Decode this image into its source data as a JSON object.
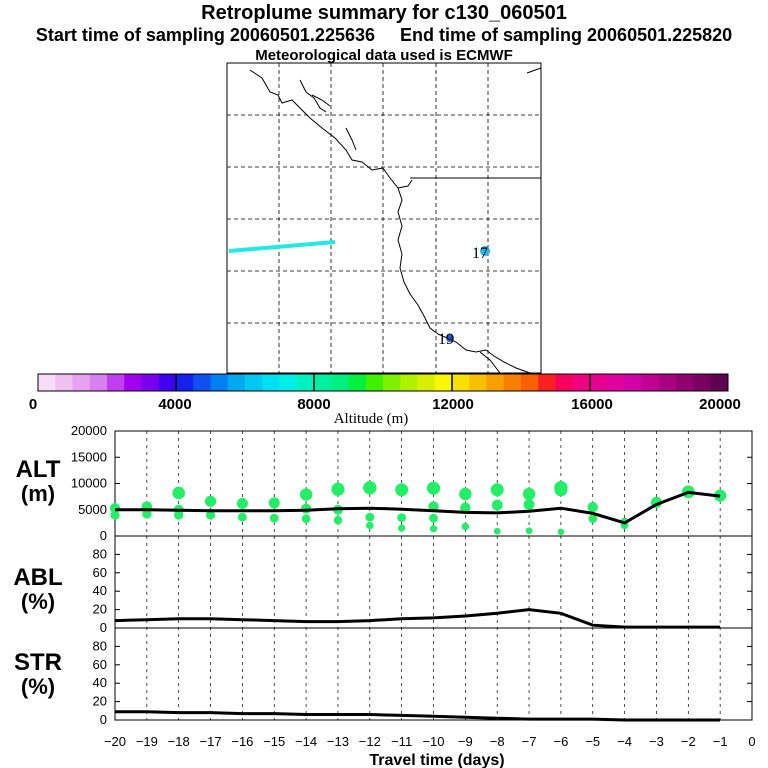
{
  "header": {
    "title": "Retroplume summary for c130_060501",
    "start_label": "Start time of sampling 20060501.225636",
    "end_label": "End time of sampling 20060501.225820",
    "met_label": "Meteorological data used is ECMWF"
  },
  "map": {
    "markers": [
      {
        "label": "17",
        "color": "#22b8e8"
      },
      {
        "label": "19",
        "color": "#1f5fd6"
      }
    ],
    "plume_color": "#22e8e8"
  },
  "colorbar": {
    "title": "Altitude (m)",
    "ticks": [
      "0",
      "4000",
      "8000",
      "12000",
      "16000",
      "20000"
    ],
    "colors": [
      "#f8dcf8",
      "#f0c0f0",
      "#e8a0f0",
      "#d880f0",
      "#c040f0",
      "#a000f0",
      "#7800f0",
      "#4000f0",
      "#1820f0",
      "#1050f0",
      "#0080f0",
      "#00a8f0",
      "#00c8f0",
      "#00e0f0",
      "#00f0e8",
      "#00f0c0",
      "#00f0a0",
      "#00f080",
      "#00f040",
      "#40f000",
      "#80f000",
      "#b0f000",
      "#d8f000",
      "#f8f800",
      "#f8e000",
      "#f8c000",
      "#f8a000",
      "#f88000",
      "#f86000",
      "#f82020",
      "#f80060",
      "#f00080",
      "#e80090",
      "#e000a0",
      "#d000a8",
      "#c00090",
      "#a80080",
      "#900070",
      "#780060",
      "#600050"
    ]
  },
  "xaxis": {
    "label": "Travel time (days)",
    "ticks": [
      "−20",
      "−19",
      "−18",
      "−17",
      "−16",
      "−15",
      "−14",
      "−13",
      "−12",
      "−11",
      "−10",
      "−9",
      "−8",
      "−7",
      "−6",
      "−5",
      "−4",
      "−3",
      "−2",
      "−1",
      "0"
    ]
  },
  "chart_data": [
    {
      "type": "line",
      "title": "ALT",
      "ylabel": "ALT (m)",
      "ylabel_line1": "ALT",
      "ylabel_line2": "(m)",
      "ylim": [
        0,
        20000
      ],
      "yticks": [
        "0",
        "5000",
        "10000",
        "15000",
        "20000"
      ],
      "x": [
        -20,
        -19,
        -18,
        -17,
        -16,
        -15,
        -14,
        -13,
        -12,
        -11,
        -10,
        -9,
        -8,
        -7,
        -6,
        -5,
        -4,
        -3,
        -2,
        -1
      ],
      "values": [
        5000,
        5000,
        4900,
        4800,
        4800,
        4800,
        4900,
        5200,
        5300,
        5100,
        4800,
        4500,
        4400,
        4700,
        5300,
        4300,
        2500,
        6000,
        8300,
        7600
      ],
      "scatter": [
        {
          "x": -20,
          "y": 5300
        },
        {
          "x": -20,
          "y": 4000
        },
        {
          "x": -19,
          "y": 5600
        },
        {
          "x": -19,
          "y": 4200
        },
        {
          "x": -18,
          "y": 8200
        },
        {
          "x": -18,
          "y": 5000
        },
        {
          "x": -18,
          "y": 4000
        },
        {
          "x": -17,
          "y": 6600
        },
        {
          "x": -17,
          "y": 4000
        },
        {
          "x": -16,
          "y": 6200
        },
        {
          "x": -16,
          "y": 3600
        },
        {
          "x": -15,
          "y": 6300
        },
        {
          "x": -15,
          "y": 3400
        },
        {
          "x": -14,
          "y": 7900
        },
        {
          "x": -14,
          "y": 5200
        },
        {
          "x": -14,
          "y": 3300
        },
        {
          "x": -13,
          "y": 8900
        },
        {
          "x": -13,
          "y": 5000
        },
        {
          "x": -13,
          "y": 3000
        },
        {
          "x": -12,
          "y": 9200
        },
        {
          "x": -12,
          "y": 3600
        },
        {
          "x": -12,
          "y": 2000
        },
        {
          "x": -11,
          "y": 8800
        },
        {
          "x": -11,
          "y": 3500
        },
        {
          "x": -11,
          "y": 1500
        },
        {
          "x": -10,
          "y": 9100
        },
        {
          "x": -10,
          "y": 5600
        },
        {
          "x": -10,
          "y": 3400
        },
        {
          "x": -10,
          "y": 1400
        },
        {
          "x": -9,
          "y": 8000
        },
        {
          "x": -9,
          "y": 5400
        },
        {
          "x": -9,
          "y": 1800
        },
        {
          "x": -8,
          "y": 8800
        },
        {
          "x": -8,
          "y": 5900
        },
        {
          "x": -8,
          "y": 900
        },
        {
          "x": -7,
          "y": 8000
        },
        {
          "x": -7,
          "y": 6000
        },
        {
          "x": -7,
          "y": 1000
        },
        {
          "x": -6,
          "y": 9200
        },
        {
          "x": -6,
          "y": 8800
        },
        {
          "x": -6,
          "y": 800
        },
        {
          "x": -5,
          "y": 5500
        },
        {
          "x": -5,
          "y": 3300
        },
        {
          "x": -4,
          "y": 2700
        },
        {
          "x": -4,
          "y": 2000
        },
        {
          "x": -3,
          "y": 6400
        },
        {
          "x": -2,
          "y": 8400
        },
        {
          "x": -1,
          "y": 7700
        }
      ]
    },
    {
      "type": "line",
      "title": "ABL",
      "ylabel": "ABL (%)",
      "ylabel_line1": "ABL",
      "ylabel_line2": "(%)",
      "ylim": [
        0,
        100
      ],
      "yticks": [
        "0",
        "20",
        "40",
        "60",
        "80"
      ],
      "x": [
        -20,
        -19,
        -18,
        -17,
        -16,
        -15,
        -14,
        -13,
        -12,
        -11,
        -10,
        -9,
        -8,
        -7,
        -6,
        -5,
        -4,
        -3,
        -2,
        -1
      ],
      "values": [
        8,
        9,
        10,
        10,
        9,
        8,
        7,
        7,
        8,
        10,
        11,
        13,
        16,
        20,
        16,
        3,
        1,
        1,
        1,
        1
      ]
    },
    {
      "type": "line",
      "title": "STR",
      "ylabel": "STR (%)",
      "ylabel_line1": "STR",
      "ylabel_line2": "(%)",
      "ylim": [
        0,
        100
      ],
      "yticks": [
        "0",
        "20",
        "40",
        "60",
        "80"
      ],
      "x": [
        -20,
        -19,
        -18,
        -17,
        -16,
        -15,
        -14,
        -13,
        -12,
        -11,
        -10,
        -9,
        -8,
        -7,
        -6,
        -5,
        -4,
        -3,
        -2,
        -1
      ],
      "values": [
        9,
        9,
        8,
        8,
        7,
        7,
        6,
        6,
        6,
        5,
        4,
        3,
        2,
        1,
        1,
        1,
        0,
        0,
        0,
        0
      ]
    }
  ]
}
